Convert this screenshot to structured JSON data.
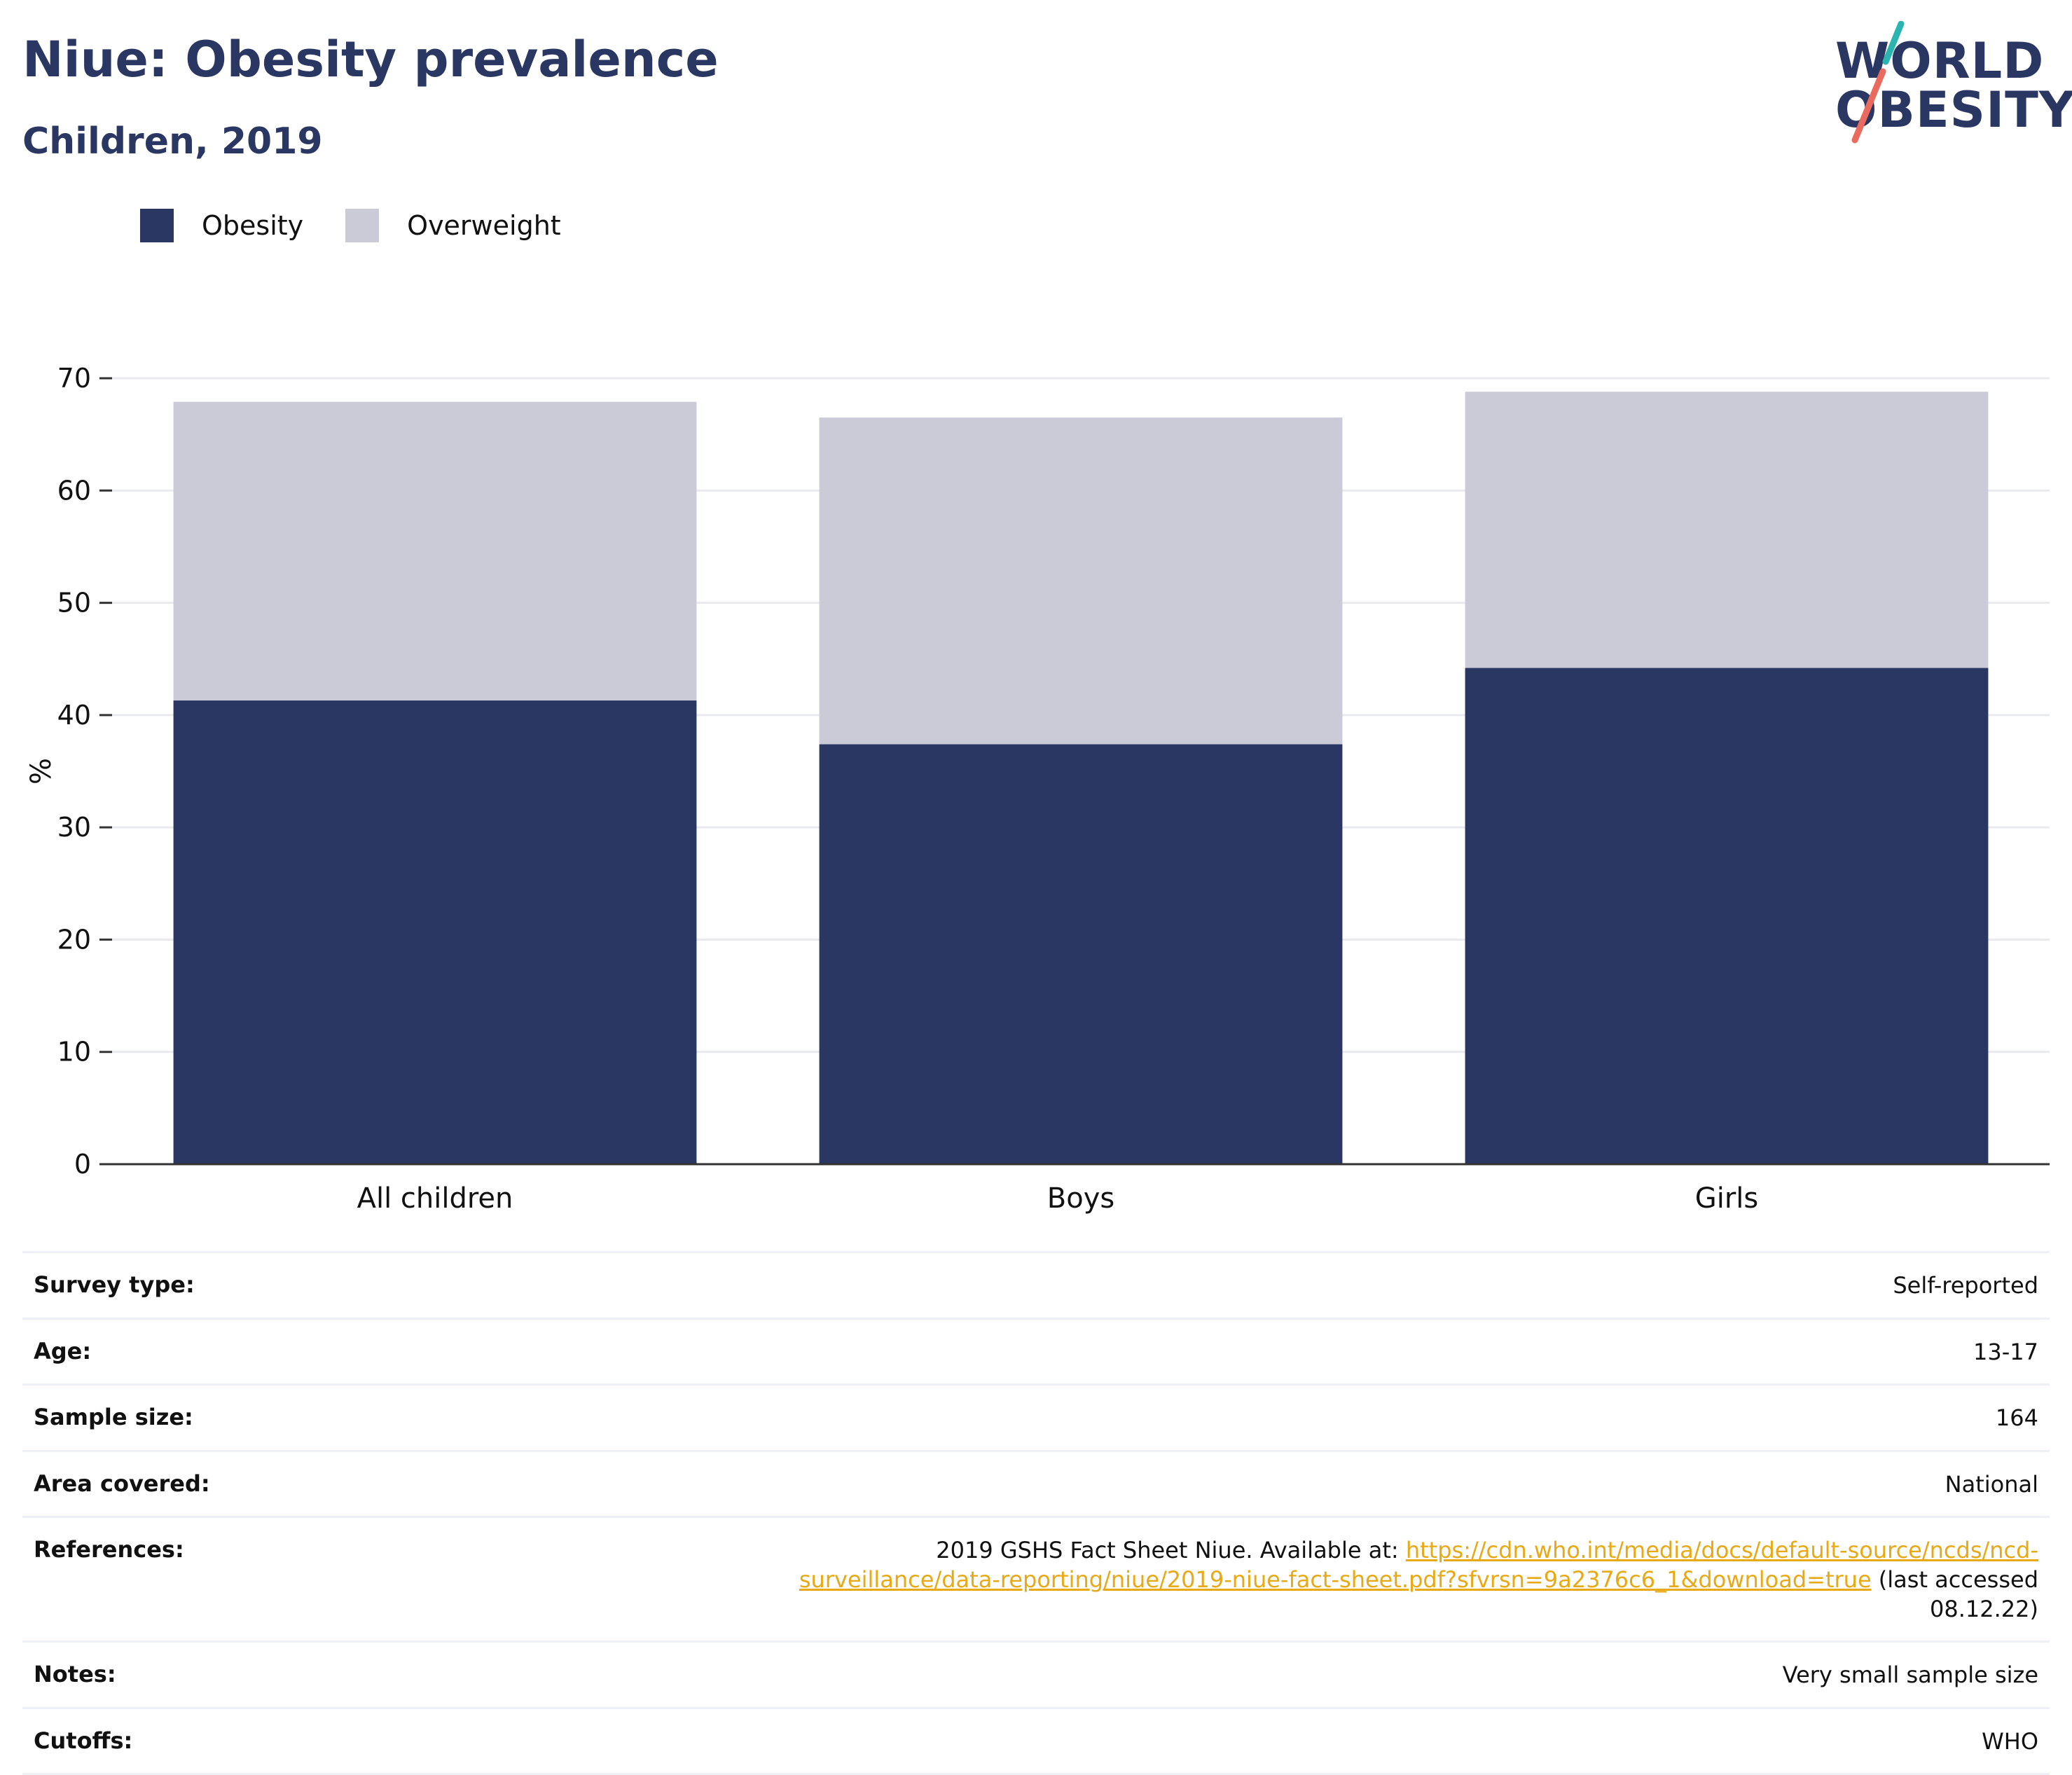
{
  "header": {
    "title": "Niue: Obesity prevalence",
    "subtitle": "Children, 2019"
  },
  "logo": {
    "line1": "WORLD",
    "line2": "OBESITY",
    "colors": {
      "navy": "#2a3762",
      "teal": "#2bb5b0",
      "coral": "#ea6b5e"
    }
  },
  "chart_data": {
    "type": "bar",
    "stacked": true,
    "categories": [
      "All children",
      "Boys",
      "Girls"
    ],
    "series": [
      {
        "name": "Obesity",
        "color": "#2a3762",
        "values": [
          41.3,
          37.4,
          44.2
        ]
      },
      {
        "name": "Overweight",
        "color": "#cacbd7",
        "values": [
          26.6,
          29.1,
          24.6
        ]
      }
    ],
    "title": "",
    "xlabel": "",
    "ylabel": "%",
    "ylim": [
      0,
      70
    ],
    "yticks": [
      0,
      10,
      20,
      30,
      40,
      50,
      60,
      70
    ],
    "grid": true,
    "legend": "top-left"
  },
  "info": [
    {
      "label": "Survey type:",
      "value": "Self-reported"
    },
    {
      "label": "Age:",
      "value": "13-17"
    },
    {
      "label": "Sample size:",
      "value": "164"
    },
    {
      "label": "Area covered:",
      "value": "National"
    },
    {
      "label": "References:",
      "value_prefix": "2019 GSHS Fact Sheet Niue. Available at: ",
      "link_text": "https://cdn.who.int/media/docs/default-source/ncds/ncd-surveillance/data-reporting/niue/2019-niue-fact-sheet.pdf?sfvrsn=9a2376c6_1&download=true",
      "value_suffix": " (last accessed 08.12.22)"
    },
    {
      "label": "Notes:",
      "value": "Very small sample size"
    },
    {
      "label": "Cutoffs:",
      "value": "WHO"
    }
  ]
}
